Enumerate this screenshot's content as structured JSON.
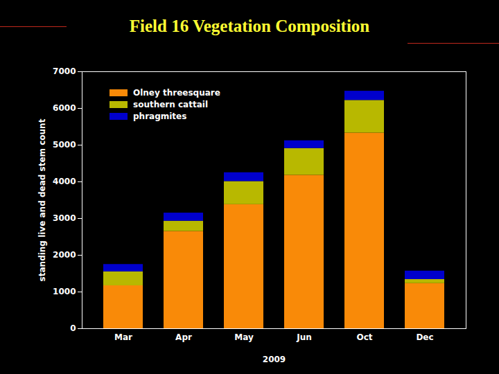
{
  "chart_data": {
    "type": "bar",
    "stacked": true,
    "title": "Field 16 Vegetation Composition",
    "x_label": "2009",
    "y_label": "standing live and dead stem count",
    "categories": [
      "Mar",
      "Apr",
      "May",
      "Jun",
      "Oct",
      "Dec"
    ],
    "series": [
      {
        "name": "Olney threesquare",
        "color": "#f98a08",
        "values": [
          1170,
          2650,
          3380,
          4180,
          5330,
          1230
        ]
      },
      {
        "name": "southern cattail",
        "color": "#b8b800",
        "values": [
          380,
          280,
          630,
          730,
          890,
          110
        ]
      },
      {
        "name": "phragmites",
        "color": "#0000cc",
        "values": [
          200,
          220,
          240,
          210,
          250,
          230
        ]
      }
    ],
    "ylim": [
      0,
      7000
    ],
    "yticks": [
      0,
      1000,
      2000,
      3000,
      4000,
      5000,
      6000,
      7000
    ],
    "grid": false,
    "legend": "top-left"
  }
}
